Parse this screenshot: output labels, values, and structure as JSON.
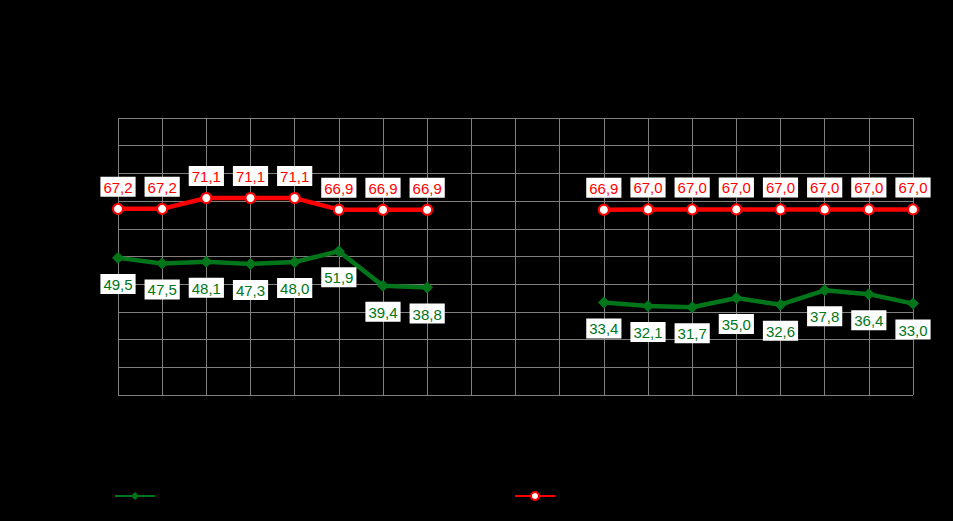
{
  "chart_data": {
    "type": "line",
    "categories": [
      null,
      null,
      null,
      null,
      null,
      null,
      null,
      null,
      null,
      null,
      null,
      null,
      null,
      null,
      null,
      null,
      null,
      null,
      null
    ],
    "series": [
      {
        "color": "#00751a",
        "marker": "diamond",
        "values": [
          49.5,
          47.5,
          48.1,
          47.3,
          48.0,
          51.9,
          39.4,
          38.8,
          null,
          null,
          null,
          33.4,
          32.1,
          31.7,
          35.0,
          32.6,
          37.8,
          36.4,
          33.0
        ],
        "value_labels": [
          "49,5",
          "47,5",
          "48,1",
          "47,3",
          "48,0",
          "51,9",
          "39,4",
          "38,8",
          null,
          null,
          null,
          "33,4",
          "32,1",
          "31,7",
          "35,0",
          "32,6",
          "37,8",
          "36,4",
          "33,0"
        ]
      },
      {
        "color": "#ff0000",
        "marker": "circle",
        "values": [
          67.2,
          67.2,
          71.1,
          71.1,
          71.1,
          66.9,
          66.9,
          66.9,
          null,
          null,
          null,
          66.9,
          67.0,
          67.0,
          67.0,
          67.0,
          67.0,
          67.0,
          67.0
        ],
        "value_labels": [
          "67,2",
          "67,2",
          "71,1",
          "71,1",
          "71,1",
          "66,9",
          "66,9",
          "66,9",
          null,
          null,
          null,
          "66,9",
          "67,0",
          "67,0",
          "67,0",
          "67,0",
          "67,0",
          "67,0",
          "67,0"
        ]
      }
    ],
    "ylim": [
      0,
      100
    ],
    "yticks": [
      0,
      10,
      20,
      30,
      40,
      50,
      60,
      70,
      80,
      90,
      100
    ],
    "grid": true,
    "data_labels": true,
    "tick_labels": false
  }
}
